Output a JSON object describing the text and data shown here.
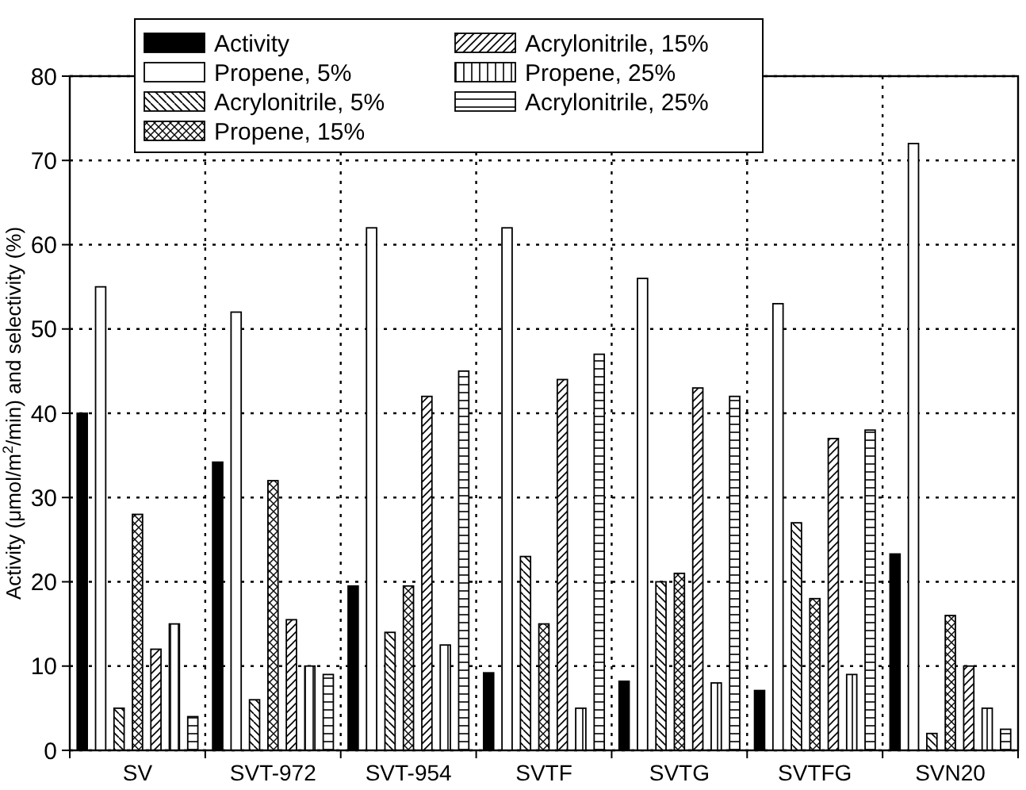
{
  "chart_data": {
    "type": "bar",
    "ylabel": "Activity (μmol/m$^{2}$/min) and selectivity (%)",
    "categories": [
      "SV",
      "SVT-972",
      "SVT-954",
      "SVTF",
      "SVTG",
      "SVTFG",
      "SVN20"
    ],
    "series": [
      {
        "name": "Activity",
        "color": "#000000",
        "values": [
          40,
          34.2,
          19.5,
          9.2,
          8.2,
          7.1,
          23.3
        ]
      },
      {
        "name": "Propene, 5%",
        "color": "#ffffff",
        "values": [
          55,
          52,
          62,
          62,
          56,
          53,
          72
        ]
      },
      {
        "name": "Acrylonitrile, 5%",
        "color": "#000000",
        "values": [
          5,
          6,
          14,
          23,
          20,
          27,
          2
        ]
      },
      {
        "name": "Propene, 15%",
        "color": "#000000",
        "values": [
          28,
          32,
          19.5,
          15,
          21,
          18,
          16
        ]
      },
      {
        "name": "Acrylonitrile, 15%",
        "color": "#000000",
        "values": [
          12,
          15.5,
          42,
          44,
          43,
          37,
          10
        ]
      },
      {
        "name": "Propene, 25%",
        "color": "#000000",
        "values": [
          15,
          10,
          12.5,
          5,
          8,
          9,
          5
        ]
      },
      {
        "name": "Acrylonitrile, 25%",
        "color": "#000000",
        "values": [
          4,
          9,
          45,
          47,
          42,
          38,
          2.5
        ]
      }
    ],
    "ylim": [
      0,
      80
    ],
    "yticks": [
      0,
      10,
      20,
      30,
      40,
      50,
      60,
      70,
      80
    ],
    "grid": true,
    "legend": "top"
  }
}
